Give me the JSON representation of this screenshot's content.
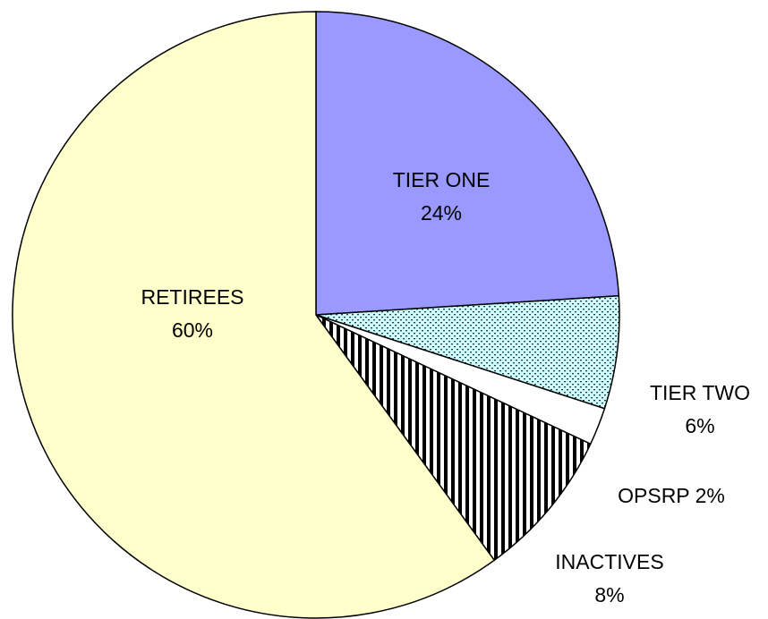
{
  "chart_data": {
    "type": "pie",
    "categories": [
      "TIER ONE",
      "TIER TWO",
      "OPSRP",
      "INACTIVES",
      "RETIREES"
    ],
    "values": [
      24,
      6,
      2,
      8,
      60
    ],
    "value_labels": [
      "24%",
      "6%",
      "2%",
      "8%",
      "60%"
    ],
    "colors": [
      "#9999ff",
      "#ccffff",
      "#ffffff",
      "#ffffff",
      "#ffffcc"
    ],
    "hatch": [
      null,
      "dots",
      null,
      "vertical",
      null
    ],
    "start_angle": 0,
    "direction": "clockwise"
  }
}
